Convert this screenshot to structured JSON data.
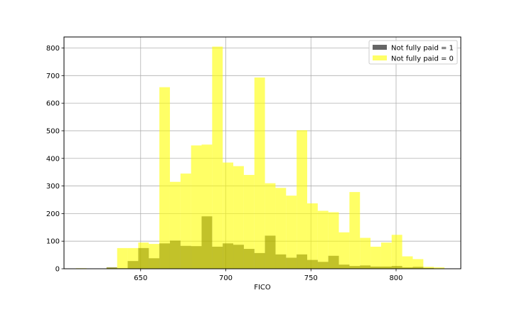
{
  "chart_data": {
    "type": "bar",
    "subtype": "overlaid-histogram",
    "title": "",
    "xlabel": "FICO",
    "ylabel": "",
    "xlim": [
      605,
      838
    ],
    "ylim": [
      0,
      840
    ],
    "xticks": [
      650,
      700,
      750,
      800
    ],
    "yticks": [
      0,
      100,
      200,
      300,
      400,
      500,
      600,
      700,
      800
    ],
    "grid": true,
    "legend_position": "top-right",
    "bin_width": 6.2,
    "series": [
      {
        "name": "Not fully paid = 1",
        "color": "#000000",
        "opacity": 0.6,
        "bins": [
          {
            "x0": 630.0,
            "x1": 636.2,
            "count": 5
          },
          {
            "x0": 636.2,
            "x1": 642.4,
            "count": 2
          },
          {
            "x0": 642.4,
            "x1": 648.6,
            "count": 28
          },
          {
            "x0": 648.6,
            "x1": 654.8,
            "count": 75
          },
          {
            "x0": 654.8,
            "x1": 661.0,
            "count": 38
          },
          {
            "x0": 661.0,
            "x1": 667.2,
            "count": 92
          },
          {
            "x0": 667.2,
            "x1": 673.4,
            "count": 102
          },
          {
            "x0": 673.4,
            "x1": 679.6,
            "count": 83
          },
          {
            "x0": 679.6,
            "x1": 685.8,
            "count": 82
          },
          {
            "x0": 685.8,
            "x1": 692.0,
            "count": 190
          },
          {
            "x0": 692.0,
            "x1": 698.2,
            "count": 80
          },
          {
            "x0": 698.2,
            "x1": 704.4,
            "count": 92
          },
          {
            "x0": 704.4,
            "x1": 710.6,
            "count": 87
          },
          {
            "x0": 710.6,
            "x1": 716.8,
            "count": 72
          },
          {
            "x0": 716.8,
            "x1": 723.0,
            "count": 57
          },
          {
            "x0": 723.0,
            "x1": 729.2,
            "count": 120
          },
          {
            "x0": 729.2,
            "x1": 735.4,
            "count": 52
          },
          {
            "x0": 735.4,
            "x1": 741.6,
            "count": 40
          },
          {
            "x0": 741.6,
            "x1": 747.8,
            "count": 52
          },
          {
            "x0": 747.8,
            "x1": 754.0,
            "count": 32
          },
          {
            "x0": 754.0,
            "x1": 760.2,
            "count": 25
          },
          {
            "x0": 760.2,
            "x1": 766.4,
            "count": 47
          },
          {
            "x0": 766.4,
            "x1": 772.6,
            "count": 15
          },
          {
            "x0": 772.6,
            "x1": 778.8,
            "count": 10
          },
          {
            "x0": 778.8,
            "x1": 785.0,
            "count": 12
          },
          {
            "x0": 785.0,
            "x1": 791.2,
            "count": 8
          },
          {
            "x0": 791.2,
            "x1": 797.4,
            "count": 8
          },
          {
            "x0": 797.4,
            "x1": 803.6,
            "count": 10
          },
          {
            "x0": 803.6,
            "x1": 809.8,
            "count": 5
          },
          {
            "x0": 809.8,
            "x1": 816.0,
            "count": 7
          },
          {
            "x0": 816.0,
            "x1": 822.2,
            "count": 3
          }
        ]
      },
      {
        "name": "Not fully paid = 0",
        "color": "#ffff00",
        "opacity": 0.6,
        "bins": [
          {
            "x0": 612.0,
            "x1": 618.2,
            "count": 2
          },
          {
            "x0": 630.0,
            "x1": 636.2,
            "count": 4
          },
          {
            "x0": 636.2,
            "x1": 642.4,
            "count": 75
          },
          {
            "x0": 642.4,
            "x1": 648.6,
            "count": 75
          },
          {
            "x0": 648.6,
            "x1": 654.8,
            "count": 95
          },
          {
            "x0": 654.8,
            "x1": 661.0,
            "count": 90
          },
          {
            "x0": 661.0,
            "x1": 667.2,
            "count": 658
          },
          {
            "x0": 667.2,
            "x1": 673.4,
            "count": 315
          },
          {
            "x0": 673.4,
            "x1": 679.6,
            "count": 345
          },
          {
            "x0": 679.6,
            "x1": 685.8,
            "count": 447
          },
          {
            "x0": 685.8,
            "x1": 692.0,
            "count": 450
          },
          {
            "x0": 692.0,
            "x1": 698.2,
            "count": 805
          },
          {
            "x0": 698.2,
            "x1": 704.4,
            "count": 385
          },
          {
            "x0": 704.4,
            "x1": 710.6,
            "count": 372
          },
          {
            "x0": 710.6,
            "x1": 716.8,
            "count": 340
          },
          {
            "x0": 716.8,
            "x1": 723.0,
            "count": 693
          },
          {
            "x0": 723.0,
            "x1": 729.2,
            "count": 310
          },
          {
            "x0": 729.2,
            "x1": 735.4,
            "count": 293
          },
          {
            "x0": 735.4,
            "x1": 741.6,
            "count": 265
          },
          {
            "x0": 741.6,
            "x1": 747.8,
            "count": 502
          },
          {
            "x0": 747.8,
            "x1": 754.0,
            "count": 237
          },
          {
            "x0": 754.0,
            "x1": 760.2,
            "count": 210
          },
          {
            "x0": 760.2,
            "x1": 766.4,
            "count": 205
          },
          {
            "x0": 766.4,
            "x1": 772.6,
            "count": 132
          },
          {
            "x0": 772.6,
            "x1": 778.8,
            "count": 278
          },
          {
            "x0": 778.8,
            "x1": 785.0,
            "count": 112
          },
          {
            "x0": 785.0,
            "x1": 791.2,
            "count": 80
          },
          {
            "x0": 791.2,
            "x1": 797.4,
            "count": 95
          },
          {
            "x0": 797.4,
            "x1": 803.6,
            "count": 123
          },
          {
            "x0": 803.6,
            "x1": 809.8,
            "count": 45
          },
          {
            "x0": 809.8,
            "x1": 816.0,
            "count": 35
          },
          {
            "x0": 816.0,
            "x1": 822.2,
            "count": 7
          },
          {
            "x0": 822.2,
            "x1": 828.4,
            "count": 5
          }
        ]
      }
    ]
  }
}
